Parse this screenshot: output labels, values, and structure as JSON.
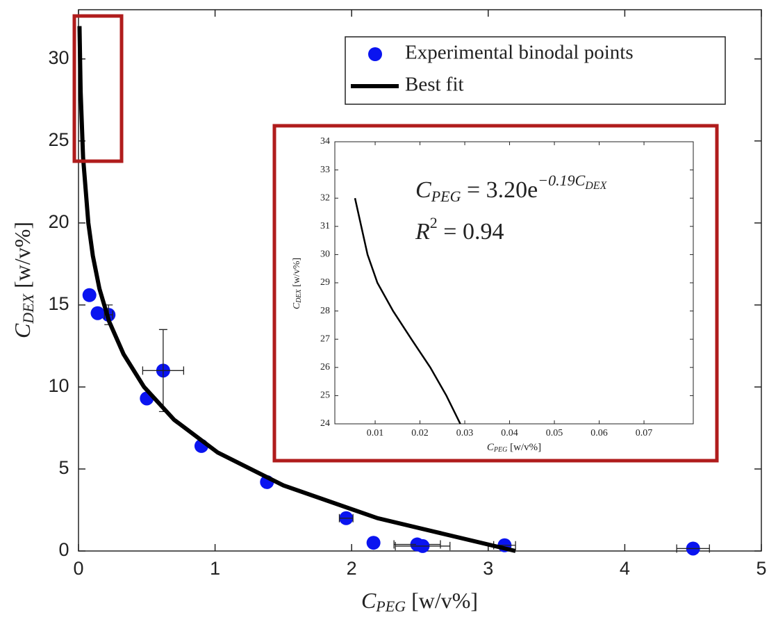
{
  "chart_data": [
    {
      "type": "scatter",
      "x_label": [
        "C",
        "PEG",
        " [w/v%]"
      ],
      "y_label": [
        "C",
        "DEX",
        " [w/v%]"
      ],
      "xlim": [
        0,
        5
      ],
      "xticks": [
        0,
        1,
        2,
        3,
        4,
        5
      ],
      "ylim": [
        0,
        33
      ],
      "yticks": [
        0,
        5,
        10,
        15,
        20,
        25,
        30
      ],
      "legend": "upper right",
      "series": [
        {
          "name": "Experimental binodal points",
          "color": "#0a14f0",
          "mark": "marker",
          "x": [
            0.08,
            0.14,
            0.22,
            0.5,
            0.62,
            0.9,
            1.38,
            1.96,
            2.16,
            2.48,
            2.52,
            3.12,
            4.5
          ],
          "y": [
            15.6,
            14.5,
            14.4,
            9.3,
            11.0,
            6.4,
            4.2,
            2.0,
            0.5,
            0.4,
            0.3,
            0.35,
            0.15
          ],
          "xerr": [
            0,
            0,
            0.03,
            0,
            0.15,
            0,
            0,
            0.05,
            0,
            0.17,
            0.2,
            0.08,
            0.12
          ],
          "yerr": [
            0,
            0,
            0.6,
            0,
            2.5,
            0,
            0,
            0,
            0,
            0,
            0,
            0,
            0
          ]
        },
        {
          "name": "Best fit",
          "color": "#000000",
          "mark": "line",
          "x": [
            3.2,
            2.19,
            1.5,
            1.02,
            0.7,
            0.48,
            0.33,
            0.224,
            0.153,
            0.105,
            0.072,
            0.0335,
            0.0157,
            0.0073
          ],
          "y": [
            0,
            2,
            4,
            6,
            8,
            10,
            12,
            14,
            16,
            18,
            20,
            24,
            28,
            32
          ]
        }
      ]
    },
    {
      "type": "line",
      "x_label": [
        "C",
        "PEG",
        " [w/v%]"
      ],
      "y_label": [
        "C",
        "DEX",
        " [w/v%]"
      ],
      "xlim": [
        0.001,
        0.081
      ],
      "xticks": [
        0.01,
        0.02,
        0.03,
        0.04,
        0.05,
        0.06,
        0.07
      ],
      "ylim": [
        24,
        34
      ],
      "yticks": [
        24,
        25,
        26,
        27,
        28,
        29,
        30,
        31,
        32,
        33,
        34
      ],
      "equation": [
        "C",
        "PEG",
        " = 3.20e",
        "−0.19C",
        "DEX"
      ],
      "r_squared": [
        "R",
        "2",
        " = 0.94"
      ],
      "series": [
        {
          "color": "#000000",
          "x": [
            0.0055,
            0.0069,
            0.0083,
            0.0105,
            0.014,
            0.0181,
            0.0223,
            0.0259,
            0.029
          ],
          "y": [
            32,
            31,
            30,
            29,
            28,
            27,
            26,
            25,
            24
          ]
        }
      ]
    }
  ]
}
